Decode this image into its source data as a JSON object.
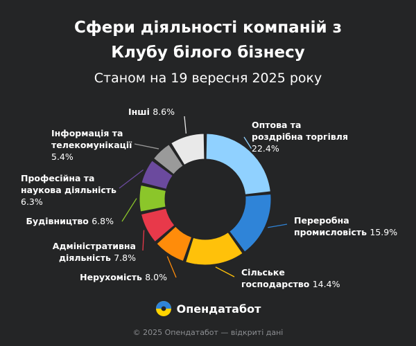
{
  "title": {
    "line1": "Сфери діяльності компаній з",
    "line2": "Клубу білого бізнесу"
  },
  "subtitle": "Станом на 19 вересня 2025 року",
  "brand": "Опендатабот",
  "footer": "© 2025 Опендатабот — відкриті дані",
  "colors": {
    "background": "#242526",
    "text": "#ffffff",
    "footer": "#8d8f93"
  },
  "chart_data": {
    "type": "pie",
    "variant": "donut",
    "unit": "%",
    "slices": [
      {
        "label": "Оптова та роздрібна торгівля",
        "value": 22.4,
        "color": "#90d1ff"
      },
      {
        "label": "Переробна промисловість",
        "value": 15.9,
        "color": "#2f84d8"
      },
      {
        "label": "Сільське господарство",
        "value": 14.4,
        "color": "#ffc10a"
      },
      {
        "label": "Нерухомість",
        "value": 8.0,
        "color": "#ff8c0a"
      },
      {
        "label": "Адміністративна діяльність",
        "value": 7.8,
        "color": "#e8394a"
      },
      {
        "label": "Будівництво",
        "value": 6.8,
        "color": "#8bc62a"
      },
      {
        "label": "Професійна та наукова діяльність",
        "value": 6.3,
        "color": "#6b4a9e"
      },
      {
        "label": "Інформація та телекомунікації",
        "value": 5.4,
        "color": "#9a9a9a"
      },
      {
        "label": "Інші",
        "value": 8.6,
        "color": "#e9e9e9"
      }
    ]
  }
}
